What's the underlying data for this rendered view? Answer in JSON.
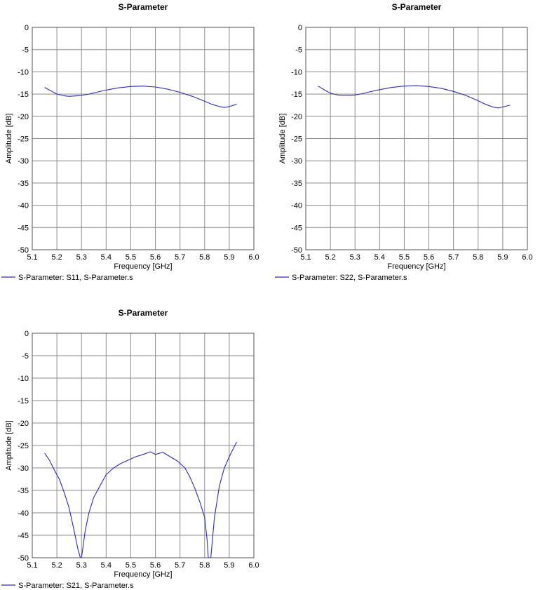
{
  "colors": {
    "series": "#2b2bb4",
    "grid": "#8c8c8c",
    "frame": "#555555"
  },
  "chart_data": [
    {
      "type": "line",
      "title": "S-Parameter",
      "xlabel": "Frequency [GHz]",
      "ylabel": "Amplitude [dB]",
      "xlim": [
        5.1,
        6.0
      ],
      "ylim": [
        -50,
        0
      ],
      "xticks": [
        "5.1",
        "5.2",
        "5.3",
        "5.4",
        "5.5",
        "5.6",
        "5.7",
        "5.8",
        "5.9",
        "6.0"
      ],
      "yticks": [
        "0",
        "-5",
        "-10",
        "-15",
        "-20",
        "-25",
        "-30",
        "-35",
        "-40",
        "-45",
        "-50"
      ],
      "grid": true,
      "legend_position": "bottom-left",
      "series": [
        {
          "name": "S-Parameter: S11, S-Parameter.s",
          "x": [
            5.15,
            5.18,
            5.2,
            5.23,
            5.25,
            5.28,
            5.3,
            5.33,
            5.36,
            5.4,
            5.45,
            5.5,
            5.55,
            5.6,
            5.65,
            5.7,
            5.75,
            5.8,
            5.83,
            5.86,
            5.88,
            5.9,
            5.93
          ],
          "y": [
            -13.5,
            -14.4,
            -15.0,
            -15.4,
            -15.5,
            -15.4,
            -15.3,
            -15.0,
            -14.6,
            -14.1,
            -13.6,
            -13.3,
            -13.2,
            -13.4,
            -13.9,
            -14.6,
            -15.5,
            -16.6,
            -17.3,
            -17.8,
            -18.0,
            -17.8,
            -17.3
          ]
        }
      ]
    },
    {
      "type": "line",
      "title": "S-Parameter",
      "xlabel": "Frequency [GHz]",
      "ylabel": "Amplitude [dB]",
      "xlim": [
        5.1,
        6.0
      ],
      "ylim": [
        -50,
        0
      ],
      "xticks": [
        "5.1",
        "5.2",
        "5.3",
        "5.4",
        "5.5",
        "5.6",
        "5.7",
        "5.8",
        "5.9",
        "6.0"
      ],
      "yticks": [
        "0",
        "-5",
        "-10",
        "-15",
        "-20",
        "-25",
        "-30",
        "-35",
        "-40",
        "-45",
        "-50"
      ],
      "grid": true,
      "legend_position": "bottom-left",
      "series": [
        {
          "name": "S-Parameter: S22, S-Parameter.s",
          "x": [
            5.15,
            5.18,
            5.2,
            5.23,
            5.25,
            5.28,
            5.3,
            5.33,
            5.36,
            5.4,
            5.45,
            5.5,
            5.55,
            5.6,
            5.65,
            5.7,
            5.75,
            5.8,
            5.83,
            5.86,
            5.88,
            5.9,
            5.93
          ],
          "y": [
            -13.2,
            -14.2,
            -14.8,
            -15.2,
            -15.3,
            -15.3,
            -15.2,
            -14.9,
            -14.5,
            -14.0,
            -13.5,
            -13.2,
            -13.1,
            -13.3,
            -13.7,
            -14.4,
            -15.3,
            -16.5,
            -17.3,
            -17.9,
            -18.1,
            -17.9,
            -17.5
          ]
        }
      ]
    },
    {
      "type": "line",
      "title": "S-Parameter",
      "xlabel": "Frequency [GHz]",
      "ylabel": "Amplitude [dB]",
      "xlim": [
        5.1,
        6.0
      ],
      "ylim": [
        -50,
        0
      ],
      "xticks": [
        "5.1",
        "5.2",
        "5.3",
        "5.4",
        "5.5",
        "5.6",
        "5.7",
        "5.8",
        "5.9",
        "6.0"
      ],
      "yticks": [
        "0",
        "-5",
        "-10",
        "-15",
        "-20",
        "-25",
        "-30",
        "-35",
        "-40",
        "-45",
        "-50"
      ],
      "grid": true,
      "legend_position": "bottom-left",
      "series": [
        {
          "name": "S-Parameter: S21, S-Parameter.s",
          "x": [
            5.15,
            5.17,
            5.19,
            5.21,
            5.23,
            5.25,
            5.27,
            5.285,
            5.295,
            5.3,
            5.305,
            5.315,
            5.33,
            5.35,
            5.37,
            5.4,
            5.43,
            5.46,
            5.5,
            5.52,
            5.55,
            5.58,
            5.6,
            5.63,
            5.66,
            5.69,
            5.72,
            5.74,
            5.76,
            5.78,
            5.8,
            5.81,
            5.815,
            5.82,
            5.825,
            5.83,
            5.84,
            5.86,
            5.88,
            5.9,
            5.93
          ],
          "y": [
            -26.7,
            -28.3,
            -30.5,
            -32.5,
            -35.5,
            -39.0,
            -44.0,
            -48.0,
            -50.0,
            -50.0,
            -48.0,
            -44.0,
            -40.0,
            -36.5,
            -34.5,
            -31.5,
            -30.0,
            -29.0,
            -28.0,
            -27.5,
            -27.0,
            -26.4,
            -27.0,
            -26.5,
            -27.5,
            -28.5,
            -30.0,
            -32.0,
            -34.5,
            -37.5,
            -41.0,
            -46.0,
            -50.0,
            -50.0,
            -50.0,
            -47.0,
            -41.0,
            -34.0,
            -30.0,
            -27.5,
            -24.2
          ]
        }
      ]
    }
  ]
}
